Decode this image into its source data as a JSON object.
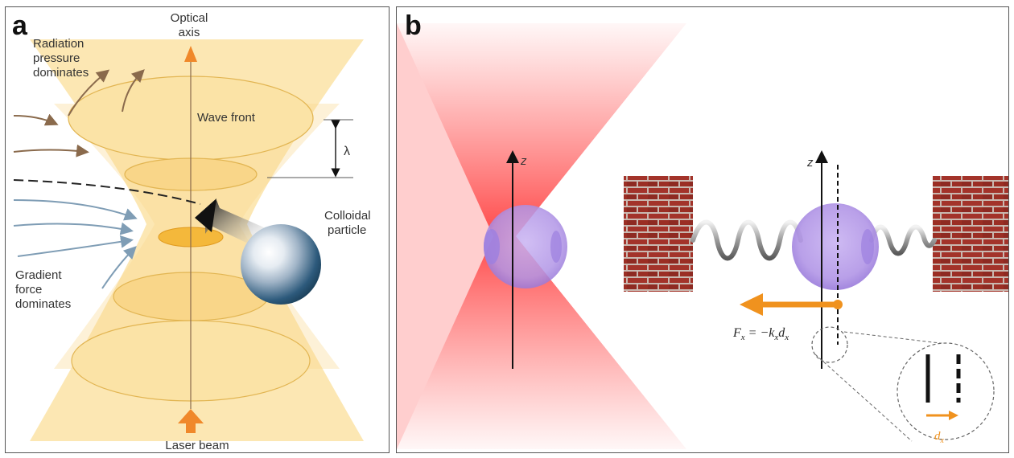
{
  "panel_a": {
    "letter": "a",
    "optical_axis_line1": "Optical",
    "optical_axis_line2": "axis",
    "radiation_line1": "Radiation",
    "radiation_line2": "pressure",
    "radiation_line3": "dominates",
    "wave_front": "Wave front",
    "lambda": "λ",
    "colloidal_line1": "Colloidal",
    "colloidal_line2": "particle",
    "gradient_line1": "Gradient",
    "gradient_line2": "force",
    "gradient_line3": "dominates",
    "laser_beam": "Laser beam",
    "colors": {
      "beam": "#fbe3a6",
      "arrow": "#f0882a",
      "brown_arrow": "#8a6a4c",
      "blue_arrow": "#7f9db5"
    }
  },
  "panel_b": {
    "letter": "b",
    "z_left": "z",
    "z_right": "z",
    "formula_F": "F",
    "formula_sub_x1": "x",
    "formula_eq": " = −k",
    "formula_sub_x2": "x",
    "formula_d": "d",
    "formula_sub_x3": "x",
    "inset_d": "d",
    "inset_sub_x": "x",
    "colors": {
      "laser": "#ff3b3b",
      "particle": "#b79be8",
      "brick": "#9b2e24",
      "force_arrow": "#f0921e"
    }
  }
}
